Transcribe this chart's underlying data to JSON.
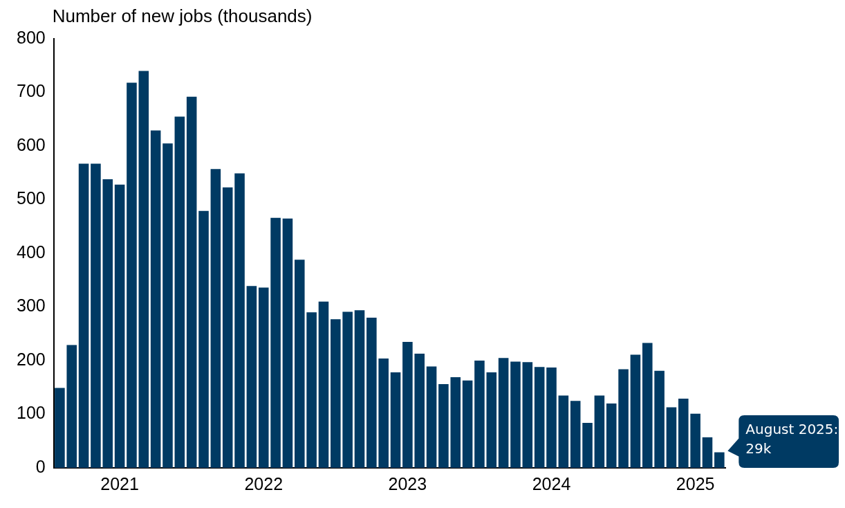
{
  "chart_data": {
    "type": "bar",
    "ylabel": "Number of new jobs (thousands)",
    "categories": [
      null,
      null,
      null,
      null,
      null,
      "2021",
      null,
      null,
      null,
      null,
      null,
      null,
      null,
      null,
      null,
      null,
      null,
      "2022",
      null,
      null,
      null,
      null,
      null,
      null,
      null,
      null,
      null,
      null,
      null,
      "2023",
      null,
      null,
      null,
      null,
      null,
      null,
      null,
      null,
      null,
      null,
      null,
      "2024",
      null,
      null,
      null,
      null,
      null,
      null,
      null,
      null,
      null,
      null,
      null,
      "2025",
      null,
      null
    ],
    "values": [
      149,
      229,
      567,
      567,
      538,
      528,
      718,
      740,
      629,
      605,
      655,
      692,
      479,
      557,
      523,
      549,
      339,
      336,
      466,
      465,
      388,
      290,
      310,
      277,
      291,
      294,
      280,
      204,
      178,
      235,
      213,
      189,
      156,
      169,
      163,
      200,
      178,
      205,
      198,
      197,
      188,
      187,
      135,
      125,
      84,
      135,
      120,
      184,
      211,
      233,
      181,
      113,
      129,
      101,
      57,
      29
    ],
    "color": "#003a63",
    "ylim": [
      0,
      800
    ],
    "yticks": [
      0,
      100,
      200,
      300,
      400,
      500,
      600,
      700,
      800
    ],
    "grid": false,
    "legend": false,
    "annotations": [
      "August 2025: 29k"
    ]
  }
}
